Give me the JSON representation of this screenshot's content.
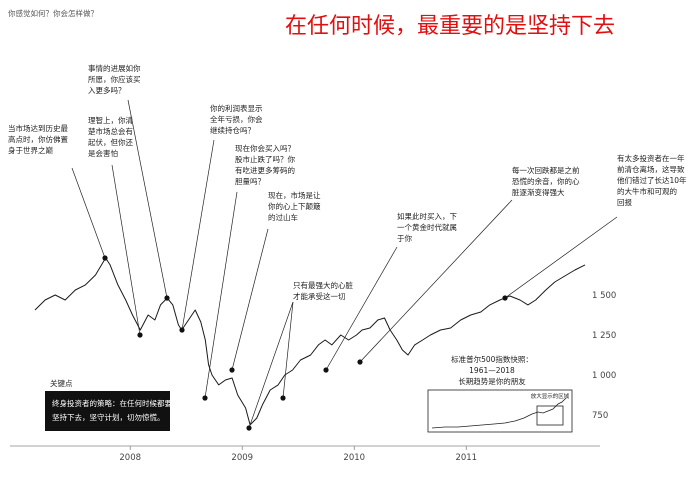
{
  "chart_data": {
    "type": "line",
    "title": "在任何时候，最重要的是坚持下去",
    "subtitle": "你感觉如何？你会怎样做？",
    "x": [
      2007.15,
      2007.24,
      2007.33,
      2007.42,
      2007.51,
      2007.6,
      2007.69,
      2007.78,
      2007.82,
      2007.89,
      2007.96,
      2008.02,
      2008.09,
      2008.16,
      2008.22,
      2008.27,
      2008.33,
      2008.38,
      2008.43,
      2008.46,
      2008.52,
      2008.58,
      2008.63,
      2008.67,
      2008.7,
      2008.73,
      2008.79,
      2008.85,
      2008.91,
      2008.96,
      2009.03,
      2009.07,
      2009.13,
      2009.18,
      2009.25,
      2009.32,
      2009.38,
      2009.45,
      2009.52,
      2009.61,
      2009.68,
      2009.74,
      2009.8,
      2009.88,
      2009.95,
      2010.02,
      2010.07,
      2010.14,
      2010.21,
      2010.27,
      2010.32,
      2010.38,
      2010.43,
      2010.48,
      2010.54,
      2010.61,
      2010.68,
      2010.77,
      2010.86,
      2010.95,
      2011.04,
      2011.13,
      2011.21,
      2011.3,
      2011.39,
      2011.48,
      2011.55,
      2011.62,
      2011.71,
      2011.79,
      2011.88,
      2011.97,
      2012.06
    ],
    "values": [
      1406,
      1469,
      1500,
      1469,
      1531,
      1563,
      1625,
      1731,
      1688,
      1563,
      1469,
      1375,
      1281,
      1375,
      1344,
      1438,
      1481,
      1438,
      1313,
      1281,
      1344,
      1406,
      1331,
      1219,
      1063,
      1000,
      938,
      969,
      981,
      875,
      794,
      688,
      731,
      813,
      906,
      938,
      1000,
      1031,
      1094,
      1125,
      1188,
      1219,
      1188,
      1250,
      1219,
      1250,
      1281,
      1294,
      1344,
      1356,
      1281,
      1219,
      1156,
      1125,
      1188,
      1219,
      1250,
      1281,
      1294,
      1344,
      1375,
      1394,
      1438,
      1469,
      1494,
      1469,
      1438,
      1469,
      1531,
      1581,
      1619,
      1656,
      1688
    ],
    "color": "#1a1a1a",
    "xlim": [
      2007.15,
      2012.06
    ],
    "xticks": [
      2008,
      2009,
      2010,
      2011
    ],
    "ylim": [
      600,
      1850
    ],
    "yticks": [
      {
        "value": 750,
        "label": "750"
      },
      {
        "value": 1000,
        "label": "1 000"
      },
      {
        "value": 1250,
        "label": "1 250"
      },
      {
        "value": 1500,
        "label": "1 500"
      }
    ],
    "annotations": [
      {
        "lines": [
          "当市场达到历史最",
          "高点时，你仿佛置",
          "身于世界之巅"
        ]
      },
      {
        "lines": [
          "事情的进展如你",
          "所愿，你应该买",
          "入更多吗？"
        ]
      },
      {
        "lines": [
          "理智上，你清",
          "楚市场总会有",
          "起伏，但你还",
          "是会害怕"
        ]
      },
      {
        "lines": [
          "你的利润表显示",
          "全年亏损，你会",
          "继续持仓吗？"
        ]
      },
      {
        "lines": [
          "现在你会买入吗？",
          "股市止跌了吗？你",
          "有吃进更多筹码的",
          "胆量吗？"
        ]
      },
      {
        "lines": [
          "现在，市场是让",
          "你的心上下颠簸",
          "的过山车"
        ]
      },
      {
        "lines": [
          "只有最强大的心脏",
          "才能承受这一切"
        ]
      },
      {
        "lines": [
          "如果此时买入，下",
          "一个黄金时代就属",
          "于你"
        ]
      },
      {
        "lines": [
          "每一次回跌都是之前",
          "恐慌的余音，你的心",
          "脏逐渐变得强大"
        ]
      },
      {
        "lines": [
          "有太多投资者在一年",
          "前清仓离场，这导致",
          "他们错过了长达10年",
          "的大牛市和可观的",
          "回报"
        ]
      }
    ],
    "key_point": {
      "label": "关键点",
      "lines": [
        "终身投资者的策略：在任何时候都要",
        "坚持下去，坚守计划，切勿惊慌。"
      ]
    },
    "inset": {
      "lines": [
        "标准普尔500指数快照：",
        "1961—2018",
        "长期趋势是你的朋友"
      ],
      "zoom_label": "放大显示的区域"
    }
  }
}
